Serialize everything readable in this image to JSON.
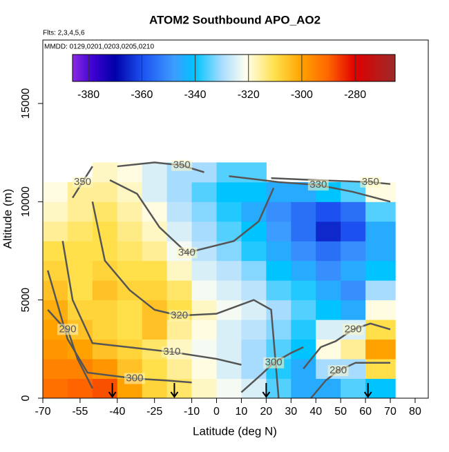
{
  "chart_data": {
    "type": "heatmap",
    "title": "ATOM2 Southbound APO_AO2",
    "subtitle": "Flts: 2,3,4,5,6",
    "annotation": "MMDD: 0129,0201,0203,0205,0210",
    "x_label": "Latitude (deg N)",
    "y_label": "Altitude (m)",
    "xlim": [
      -70,
      85.3
    ],
    "ylim": [
      0,
      18230
    ],
    "xticks": [
      -70,
      -55,
      -40,
      -25,
      -10,
      0,
      10,
      20,
      30,
      40,
      50,
      60,
      70,
      80
    ],
    "yticks": [
      0,
      5000,
      10000,
      15000
    ],
    "lat_edges": [
      -70,
      -60,
      -50,
      -40,
      -30,
      -20,
      -10,
      0,
      10,
      20,
      30,
      40,
      50,
      60,
      72
    ],
    "alt_edges": [
      0,
      1000,
      2000,
      3000,
      4000,
      5000,
      6000,
      7000,
      8000,
      9000,
      10000,
      11000,
      12000
    ],
    "values": [
      [
        -292,
        -295,
        -298,
        -300,
        -302,
        -305,
        -308,
        -310,
        -315,
        -318,
        -320,
        null
      ],
      [
        -290,
        -295,
        -300,
        -305,
        -308,
        -310,
        -310,
        -310,
        -312,
        -315,
        -315,
        null
      ],
      [
        -288,
        -298,
        -305,
        -308,
        -308,
        -305,
        -308,
        -310,
        -310,
        -312,
        -315,
        -318
      ],
      [
        -300,
        -305,
        -308,
        -310,
        -310,
        -308,
        -310,
        -312,
        -314,
        -316,
        -318,
        -320
      ],
      [
        -308,
        -310,
        -312,
        -305,
        -305,
        -308,
        -310,
        -315,
        -318,
        -320,
        -325,
        -325
      ],
      [
        -312,
        -315,
        -318,
        -315,
        -310,
        -312,
        -318,
        -322,
        -325,
        -328,
        -330,
        -330
      ],
      [
        -318,
        -320,
        -322,
        -320,
        -318,
        -322,
        -325,
        -328,
        -330,
        -332,
        -335,
        -330
      ],
      [
        -322,
        -325,
        -325,
        -325,
        -322,
        -325,
        -328,
        -332,
        -335,
        -338,
        -340,
        -335
      ],
      [
        -325,
        -330,
        -330,
        -328,
        -325,
        -328,
        -332,
        -338,
        -340,
        -345,
        -340,
        -335
      ],
      [
        -335,
        -338,
        -335,
        -332,
        -330,
        -335,
        -340,
        -345,
        -348,
        -350,
        -345,
        null
      ],
      [
        -345,
        -345,
        -340,
        -338,
        -335,
        -338,
        -345,
        -350,
        -355,
        -355,
        -345,
        null
      ],
      [
        -345,
        -330,
        -320,
        -325,
        -340,
        -345,
        -350,
        -355,
        -365,
        -360,
        -340,
        null
      ],
      [
        -335,
        -330,
        -315,
        -325,
        -345,
        -350,
        -345,
        -350,
        -360,
        -355,
        -335,
        null
      ],
      [
        -340,
        -310,
        -300,
        -310,
        -320,
        -330,
        -340,
        -345,
        -345,
        -335,
        -320,
        null
      ]
    ],
    "clim": [
      -386,
      -265
    ],
    "cticks": [
      -380,
      -360,
      -340,
      -320,
      -300,
      -280
    ],
    "colorscale": [
      [
        -386,
        "#8a2be2"
      ],
      [
        -378,
        "#3a00d0"
      ],
      [
        -370,
        "#0000a8"
      ],
      [
        -360,
        "#1c50f0"
      ],
      [
        -348,
        "#3c9cff"
      ],
      [
        -340,
        "#00c4ff"
      ],
      [
        -330,
        "#a8dcff"
      ],
      [
        -321,
        "#fffff0"
      ],
      [
        -310,
        "#ffe04a"
      ],
      [
        -300,
        "#ffa200"
      ],
      [
        -290,
        "#ff6400"
      ],
      [
        -280,
        "#e00000"
      ],
      [
        -265,
        "#9c2a2a"
      ]
    ],
    "contour_color": "#555555",
    "contours": [
      {
        "level": 350,
        "points": [
          [
            -58,
            10200
          ],
          [
            -54,
            11000
          ],
          [
            -50,
            11800
          ]
        ]
      },
      {
        "level": 350,
        "points": [
          [
            -40,
            11800
          ],
          [
            -25,
            12000
          ],
          [
            -14,
            11850
          ],
          [
            -5,
            11500
          ]
        ]
      },
      {
        "level": 350,
        "points": [
          [
            22,
            11200
          ],
          [
            40,
            11100
          ],
          [
            62,
            11000
          ],
          [
            70,
            10900
          ]
        ]
      },
      {
        "level": 330,
        "points": [
          [
            5,
            11300
          ],
          [
            25,
            11000
          ],
          [
            41,
            10850
          ],
          [
            55,
            10500
          ],
          [
            70,
            10000
          ]
        ]
      },
      {
        "level": 340,
        "points": [
          [
            -43,
            11100
          ],
          [
            -32,
            10400
          ],
          [
            -23,
            8700
          ],
          [
            -12,
            7400
          ],
          [
            7,
            8000
          ],
          [
            17,
            9000
          ],
          [
            23,
            10700
          ]
        ]
      },
      {
        "level": 320,
        "points": [
          [
            -50,
            10000
          ],
          [
            -45,
            7000
          ],
          [
            -35,
            5500
          ],
          [
            -25,
            4500
          ],
          [
            -15,
            4200
          ],
          [
            0,
            4300
          ],
          [
            15,
            5000
          ],
          [
            22,
            4500
          ],
          [
            25,
            0
          ]
        ]
      },
      {
        "level": 310,
        "points": [
          [
            -62,
            8000
          ],
          [
            -58,
            5000
          ],
          [
            -50,
            2800
          ],
          [
            -18,
            2350
          ],
          [
            0,
            2000
          ],
          [
            10,
            1700
          ]
        ]
      },
      {
        "level": 300,
        "points": [
          [
            -68,
            6500
          ],
          [
            -60,
            3000
          ],
          [
            -52,
            1300
          ],
          [
            -33,
            1000
          ],
          [
            -20,
            900
          ],
          [
            -10,
            800
          ]
        ]
      },
      {
        "level": 300,
        "points": [
          [
            10,
            300
          ],
          [
            18,
            1200
          ],
          [
            23,
            1800
          ],
          [
            30,
            2300
          ],
          [
            35,
            2600
          ]
        ]
      },
      {
        "level": 290,
        "points": [
          [
            -68,
            4500
          ],
          [
            -63,
            3800
          ],
          [
            -60,
            3500
          ],
          [
            -56,
            2000
          ],
          [
            -50,
            500
          ]
        ]
      },
      {
        "level": 290,
        "points": [
          [
            35,
            1500
          ],
          [
            42,
            2600
          ],
          [
            48,
            2900
          ],
          [
            55,
            3500
          ],
          [
            62,
            3800
          ],
          [
            70,
            3500
          ]
        ]
      },
      {
        "level": 280,
        "points": [
          [
            38,
            0
          ],
          [
            44,
            900
          ],
          [
            49,
            1400
          ],
          [
            56,
            1800
          ],
          [
            70,
            1800
          ]
        ]
      }
    ],
    "arrows": [
      -42,
      -17,
      20,
      61
    ]
  }
}
